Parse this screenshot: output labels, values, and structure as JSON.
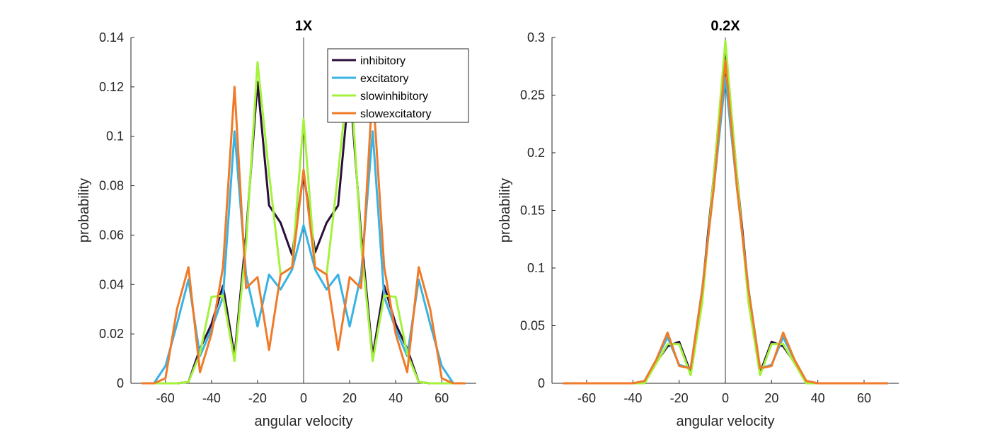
{
  "chart_data": [
    {
      "type": "line",
      "title": "1X",
      "xlabel": "angular velocity",
      "ylabel": "probability",
      "xlim": [
        -75,
        75
      ],
      "ylim": [
        0,
        0.14
      ],
      "xticks": [
        -60,
        -40,
        -20,
        0,
        20,
        40,
        60
      ],
      "xtick_labels": [
        "-60",
        "-40",
        "-20",
        "0",
        "20",
        "40",
        "60"
      ],
      "yticks": [
        0,
        0.02,
        0.04,
        0.06,
        0.08,
        0.1,
        0.12,
        0.14
      ],
      "ytick_labels": [
        "0",
        "0.02",
        "0.04",
        "0.06",
        "0.08",
        "0.1",
        "0.12",
        "0.14"
      ],
      "zero_line": true,
      "grid": false,
      "legend": "top-right",
      "x": [
        -70,
        -65,
        -60,
        -55,
        -50,
        -45,
        -40,
        -35,
        -30,
        -25,
        -20,
        -15,
        -10,
        -5,
        0,
        5,
        10,
        15,
        20,
        25,
        30,
        35,
        40,
        45,
        50,
        55,
        60,
        65,
        70
      ],
      "series": [
        {
          "name": "inhibitory",
          "color": "#2a0f3c",
          "values": [
            0,
            0,
            0,
            0,
            0.0005,
            0.014,
            0.024,
            0.0395,
            0.011,
            0.06,
            0.122,
            0.072,
            0.065,
            0.052,
            0.085,
            0.053,
            0.065,
            0.072,
            0.122,
            0.06,
            0.011,
            0.0395,
            0.024,
            0.014,
            0.0005,
            0,
            0,
            0,
            0
          ]
        },
        {
          "name": "excitatory",
          "color": "#38b3e3",
          "values": [
            0,
            0,
            0.007,
            0.024,
            0.042,
            0.011,
            0.022,
            0.035,
            0.102,
            0.044,
            0.023,
            0.044,
            0.038,
            0.046,
            0.064,
            0.046,
            0.038,
            0.044,
            0.023,
            0.044,
            0.102,
            0.035,
            0.022,
            0.011,
            0.042,
            0.024,
            0.007,
            0,
            0
          ]
        },
        {
          "name": "slowinhibitory",
          "color": "#a4f23c",
          "values": [
            0,
            0,
            0,
            0,
            0.0005,
            0.012,
            0.035,
            0.0355,
            0.009,
            0.056,
            0.13,
            0.085,
            0.044,
            0.047,
            0.107,
            0.047,
            0.044,
            0.085,
            0.13,
            0.056,
            0.009,
            0.0355,
            0.035,
            0.012,
            0.0005,
            0,
            0,
            0,
            0
          ]
        },
        {
          "name": "slowexcitatory",
          "color": "#f07a28",
          "values": [
            0,
            0,
            0.002,
            0.03,
            0.047,
            0.0045,
            0.02,
            0.047,
            0.12,
            0.0385,
            0.043,
            0.0135,
            0.044,
            0.047,
            0.0865,
            0.047,
            0.044,
            0.0135,
            0.043,
            0.0385,
            0.12,
            0.047,
            0.02,
            0.0045,
            0.047,
            0.03,
            0.002,
            0,
            0
          ]
        }
      ]
    },
    {
      "type": "line",
      "title": "0.2X",
      "xlabel": "angular velocity",
      "ylabel": "probability",
      "xlim": [
        -75,
        75
      ],
      "ylim": [
        0,
        0.3
      ],
      "xticks": [
        -60,
        -40,
        -20,
        0,
        20,
        40,
        60
      ],
      "xtick_labels": [
        "-60",
        "-40",
        "-20",
        "0",
        "20",
        "40",
        "60"
      ],
      "yticks": [
        0,
        0.05,
        0.1,
        0.15,
        0.2,
        0.25,
        0.3
      ],
      "ytick_labels": [
        "0",
        "0.05",
        "0.1",
        "0.15",
        "0.2",
        "0.25",
        "0.3"
      ],
      "zero_line": true,
      "grid": false,
      "x": [
        -70,
        -65,
        -60,
        -55,
        -50,
        -45,
        -40,
        -35,
        -30,
        -25,
        -20,
        -15,
        -10,
        -5,
        0,
        5,
        10,
        15,
        20,
        25,
        30,
        35,
        40,
        45,
        50,
        55,
        60,
        65,
        70
      ],
      "series": [
        {
          "name": "inhibitory",
          "color": "#2a0f3c",
          "values": [
            0,
            0,
            0,
            0,
            0,
            0,
            0,
            0.001,
            0.018,
            0.032,
            0.036,
            0.009,
            0.08,
            0.18,
            0.293,
            0.18,
            0.08,
            0.009,
            0.036,
            0.032,
            0.018,
            0.001,
            0,
            0,
            0,
            0,
            0,
            0,
            0
          ]
        },
        {
          "name": "excitatory",
          "color": "#38b3e3",
          "values": [
            0,
            0,
            0,
            0,
            0,
            0,
            0,
            0.002,
            0.02,
            0.04,
            0.016,
            0.013,
            0.082,
            0.17,
            0.265,
            0.17,
            0.082,
            0.013,
            0.016,
            0.04,
            0.02,
            0.002,
            0,
            0,
            0,
            0,
            0,
            0,
            0
          ]
        },
        {
          "name": "slowinhibitory",
          "color": "#a4f23c",
          "values": [
            0,
            0,
            0,
            0,
            0,
            0,
            0,
            0,
            0.017,
            0.034,
            0.034,
            0.007,
            0.07,
            0.18,
            0.297,
            0.18,
            0.07,
            0.007,
            0.034,
            0.034,
            0.017,
            0,
            0,
            0,
            0,
            0,
            0,
            0,
            0
          ]
        },
        {
          "name": "slowexcitatory",
          "color": "#f07a28",
          "values": [
            0,
            0,
            0,
            0,
            0,
            0,
            0,
            0.002,
            0.02,
            0.044,
            0.015,
            0.013,
            0.081,
            0.17,
            0.28,
            0.17,
            0.081,
            0.013,
            0.015,
            0.044,
            0.02,
            0.002,
            0,
            0,
            0,
            0,
            0,
            0,
            0
          ]
        }
      ]
    }
  ]
}
